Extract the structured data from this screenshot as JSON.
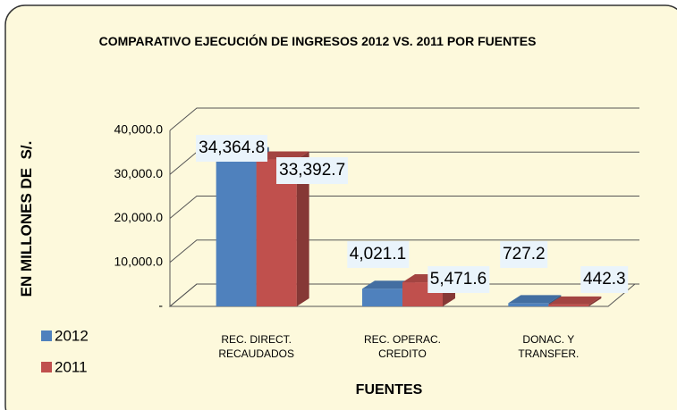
{
  "chart_data": {
    "type": "bar3d",
    "title": "COMPARATIVO EJECUCIÓN DE INGRESOS 2012 VS. 2011 POR FUENTES",
    "y_label": "EN MILLONES DE  S/.",
    "x_label": "FUENTES",
    "categories": [
      "REC. DIRECT. RECAUDADOS",
      "REC. OPERAC. CREDITO",
      "DONAC. Y TRANSFER."
    ],
    "series": [
      {
        "name": "2012",
        "color": "#4f81bd",
        "values": [
          34364.8,
          4021.1,
          727.2
        ],
        "value_labels": [
          "34,364.8",
          "4,021.1",
          "727.2"
        ]
      },
      {
        "name": "2011",
        "color": "#c0504d",
        "values": [
          33392.7,
          5471.6,
          442.3
        ],
        "value_labels": [
          "33,392.7",
          "5,471.6",
          "442.3"
        ]
      }
    ],
    "ylim": [
      0,
      40000
    ],
    "yticks": [
      {
        "value": 0,
        "label": "-"
      },
      {
        "value": 10000,
        "label": "10,000.0"
      },
      {
        "value": 20000,
        "label": "20,000.0"
      },
      {
        "value": 30000,
        "label": "30,000.0"
      },
      {
        "value": 40000,
        "label": "40,000.0"
      }
    ],
    "grid": true,
    "legend": "left"
  }
}
